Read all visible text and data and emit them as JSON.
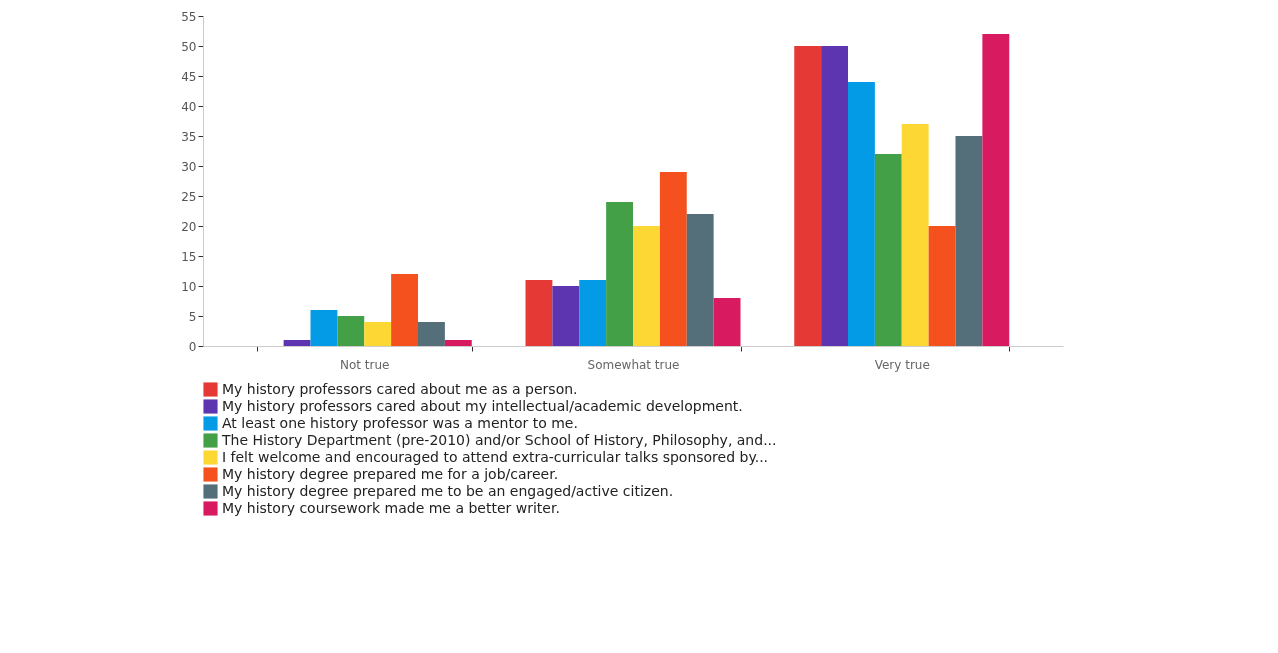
{
  "chart_data": {
    "type": "bar",
    "categories": [
      "Not true",
      "Somewhat true",
      "Very true"
    ],
    "series": [
      {
        "name": "My history professors cared about me as a person.",
        "color": "#e53935",
        "values": [
          0,
          11,
          50
        ]
      },
      {
        "name": "My history professors cared about my intellectual/academic development.",
        "color": "#5e35b1",
        "values": [
          1,
          10,
          50
        ]
      },
      {
        "name": "At least one history professor was a mentor to me.",
        "color": "#039be5",
        "values": [
          6,
          11,
          44
        ]
      },
      {
        "name": "The History Department (pre-2010) and/or School of History, Philosophy, and...",
        "color": "#43a047",
        "values": [
          5,
          24,
          32
        ]
      },
      {
        "name": "I felt welcome and encouraged to attend extra-curricular talks sponsored by...",
        "color": "#fdd835",
        "values": [
          4,
          20,
          37
        ]
      },
      {
        "name": "My history degree prepared me for a job/career.",
        "color": "#f4511e",
        "values": [
          12,
          29,
          20
        ]
      },
      {
        "name": "My history degree prepared me to be an engaged/active citizen.",
        "color": "#546e7a",
        "values": [
          4,
          22,
          35
        ]
      },
      {
        "name": "My history coursework made me a better writer.",
        "color": "#d81b60",
        "values": [
          1,
          8,
          52
        ]
      }
    ],
    "ylim": [
      0,
      55
    ],
    "yticks": [
      0,
      5,
      10,
      15,
      20,
      25,
      30,
      35,
      40,
      45,
      50,
      55
    ],
    "grid": false,
    "legend": "bottom"
  }
}
